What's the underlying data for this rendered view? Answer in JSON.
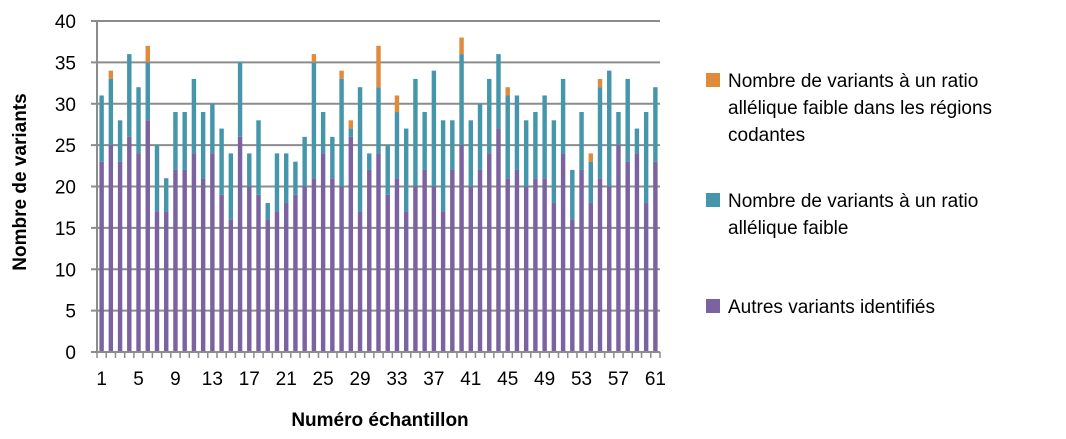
{
  "chart_data": {
    "type": "bar",
    "stacked": true,
    "xlabel": "Numéro échantillon",
    "ylabel": "Nombre de variants",
    "ylim": [
      0,
      40
    ],
    "yticks": [
      "0",
      "5",
      "10",
      "15",
      "20",
      "25",
      "30",
      "35",
      "40"
    ],
    "xtick_labels": [
      "1",
      "5",
      "9",
      "13",
      "17",
      "21",
      "25",
      "29",
      "33",
      "37",
      "41",
      "45",
      "49",
      "53",
      "57",
      "61"
    ],
    "grid": true,
    "legend_position": "right",
    "categories": [
      1,
      2,
      3,
      4,
      5,
      6,
      7,
      8,
      9,
      10,
      11,
      12,
      13,
      14,
      15,
      16,
      17,
      18,
      19,
      20,
      21,
      22,
      23,
      24,
      25,
      26,
      27,
      28,
      29,
      30,
      31,
      32,
      33,
      34,
      35,
      36,
      37,
      38,
      39,
      40,
      41,
      42,
      43,
      44,
      45,
      46,
      47,
      48,
      49,
      50,
      51,
      52,
      53,
      54,
      55,
      56,
      57,
      58,
      59,
      60,
      61
    ],
    "series": [
      {
        "name": "Autres variants identifiés",
        "color": "#7b62a1",
        "values": [
          23,
          25,
          23,
          26,
          24,
          28,
          17,
          17,
          22,
          22,
          24,
          21,
          24,
          19,
          16,
          26,
          20,
          19,
          16,
          17,
          18,
          19,
          20,
          21,
          24,
          21,
          20,
          26,
          17,
          22,
          24,
          19,
          21,
          17,
          20,
          22,
          20,
          17,
          22,
          25,
          20,
          22,
          24,
          27,
          21,
          22,
          20,
          21,
          21,
          18,
          24,
          16,
          22,
          18,
          21,
          20,
          25,
          23,
          24,
          18,
          23
        ]
      },
      {
        "name": "Nombre de variants à un ratio allélique faible",
        "color": "#4596ab",
        "values": [
          8,
          8,
          5,
          10,
          8,
          7,
          8,
          4,
          7,
          7,
          9,
          8,
          6,
          8,
          8,
          9,
          4,
          9,
          2,
          7,
          6,
          4,
          6,
          14,
          5,
          5,
          13,
          1,
          15,
          2,
          8,
          6,
          8,
          10,
          13,
          7,
          14,
          11,
          6,
          11,
          8,
          8,
          9,
          9,
          10,
          9,
          8,
          8,
          10,
          10,
          9,
          6,
          7,
          5,
          11,
          14,
          4,
          10,
          3,
          11,
          9
        ]
      },
      {
        "name": "Nombre de variants à un ratio allélique faible dans les régions codantes",
        "color": "#e08a3c",
        "values": [
          0,
          1,
          0,
          0,
          0,
          2,
          0,
          0,
          0,
          0,
          0,
          0,
          0,
          0,
          0,
          0,
          0,
          0,
          0,
          0,
          0,
          0,
          0,
          1,
          0,
          0,
          1,
          1,
          0,
          0,
          5,
          0,
          2,
          0,
          0,
          0,
          0,
          0,
          0,
          2,
          0,
          0,
          0,
          0,
          1,
          0,
          0,
          0,
          0,
          0,
          0,
          0,
          0,
          1,
          1,
          0,
          0,
          0,
          0,
          0,
          0
        ]
      }
    ],
    "legend": [
      {
        "label": "Nombre de variants à un ratio allélique faible dans les régions codantes",
        "lines": [
          "Nombre de variants à un ratio",
          "allélique faible dans les régions",
          "codantes"
        ],
        "color": "#e08a3c"
      },
      {
        "label": "Nombre de variants à un ratio allélique faible",
        "lines": [
          "Nombre de variants à un ratio",
          "allélique faible"
        ],
        "color": "#4596ab"
      },
      {
        "label": "Autres variants identifiés",
        "lines": [
          "Autres variants identifiés"
        ],
        "color": "#7b62a1"
      }
    ]
  }
}
